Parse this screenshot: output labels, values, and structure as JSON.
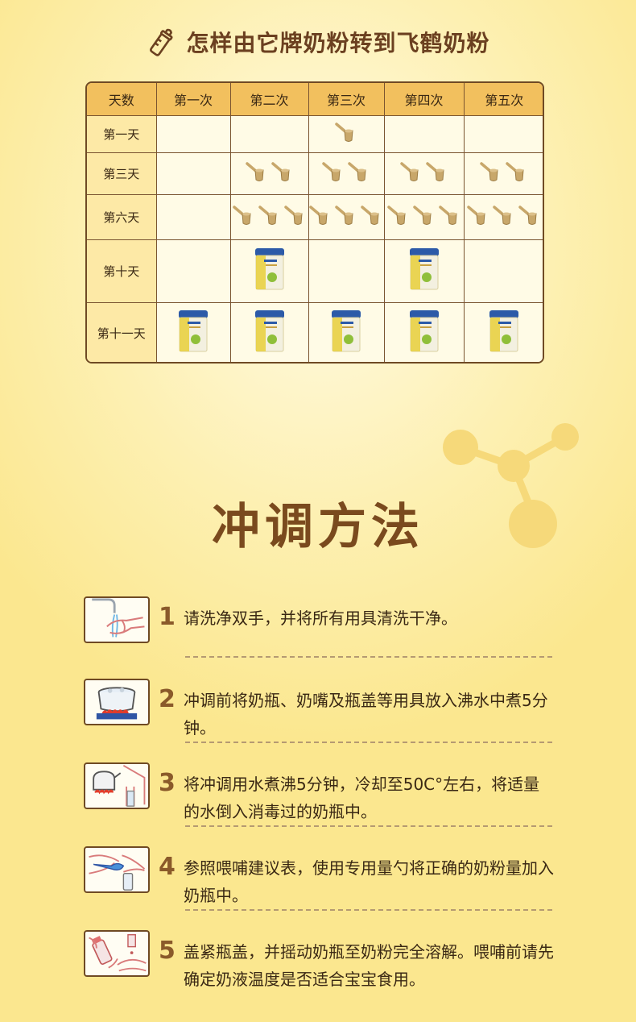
{
  "header": {
    "title": "怎样由它牌奶粉转到飞鹤奶粉",
    "icon": "baby-bottle-icon"
  },
  "schedule": {
    "columns": [
      "天数",
      "第一次",
      "第二次",
      "第三次",
      "第四次",
      "第五次"
    ],
    "rows": [
      {
        "label": "第一天",
        "cells": [
          0,
          0,
          1,
          0,
          0
        ],
        "type": "spoon"
      },
      {
        "label": "第三天",
        "cells": [
          0,
          2,
          2,
          2,
          2
        ],
        "type": "spoon"
      },
      {
        "label": "第六天",
        "cells": [
          0,
          3,
          3,
          3,
          3
        ],
        "type": "spoon"
      },
      {
        "label": "第十天",
        "cells": [
          0,
          1,
          0,
          1,
          0
        ],
        "type": "can"
      },
      {
        "label": "第十一天",
        "cells": [
          1,
          1,
          1,
          1,
          1
        ],
        "type": "can"
      }
    ]
  },
  "section": {
    "title": "冲调方法"
  },
  "steps": [
    {
      "num": "1",
      "text": "请洗净双手，并将所有用具清洗干净。",
      "icon": "hand-washing-icon"
    },
    {
      "num": "2",
      "text": "冲调前将奶瓶、奶嘴及瓶盖等用具放入沸水中煮5分钟。",
      "icon": "boiling-pot-icon"
    },
    {
      "num": "3",
      "text": "将冲调用水煮沸5分钟，冷却至50C°左右，将适量的水倒入消毒过的奶瓶中。",
      "icon": "kettle-pour-icon"
    },
    {
      "num": "4",
      "text": "参照喂哺建议表，使用专用量勺将正确的奶粉量加入奶瓶中。",
      "icon": "scoop-powder-icon"
    },
    {
      "num": "5",
      "text": "盖紧瓶盖，并摇动奶瓶至奶粉完全溶解。喂哺前请先确定奶液温度是否适合宝宝食用。",
      "icon": "shake-bottle-icon"
    }
  ],
  "colors": {
    "accent": "#7a4a1e",
    "header_cell": "#f2c05e",
    "background": "#fbe78f"
  }
}
